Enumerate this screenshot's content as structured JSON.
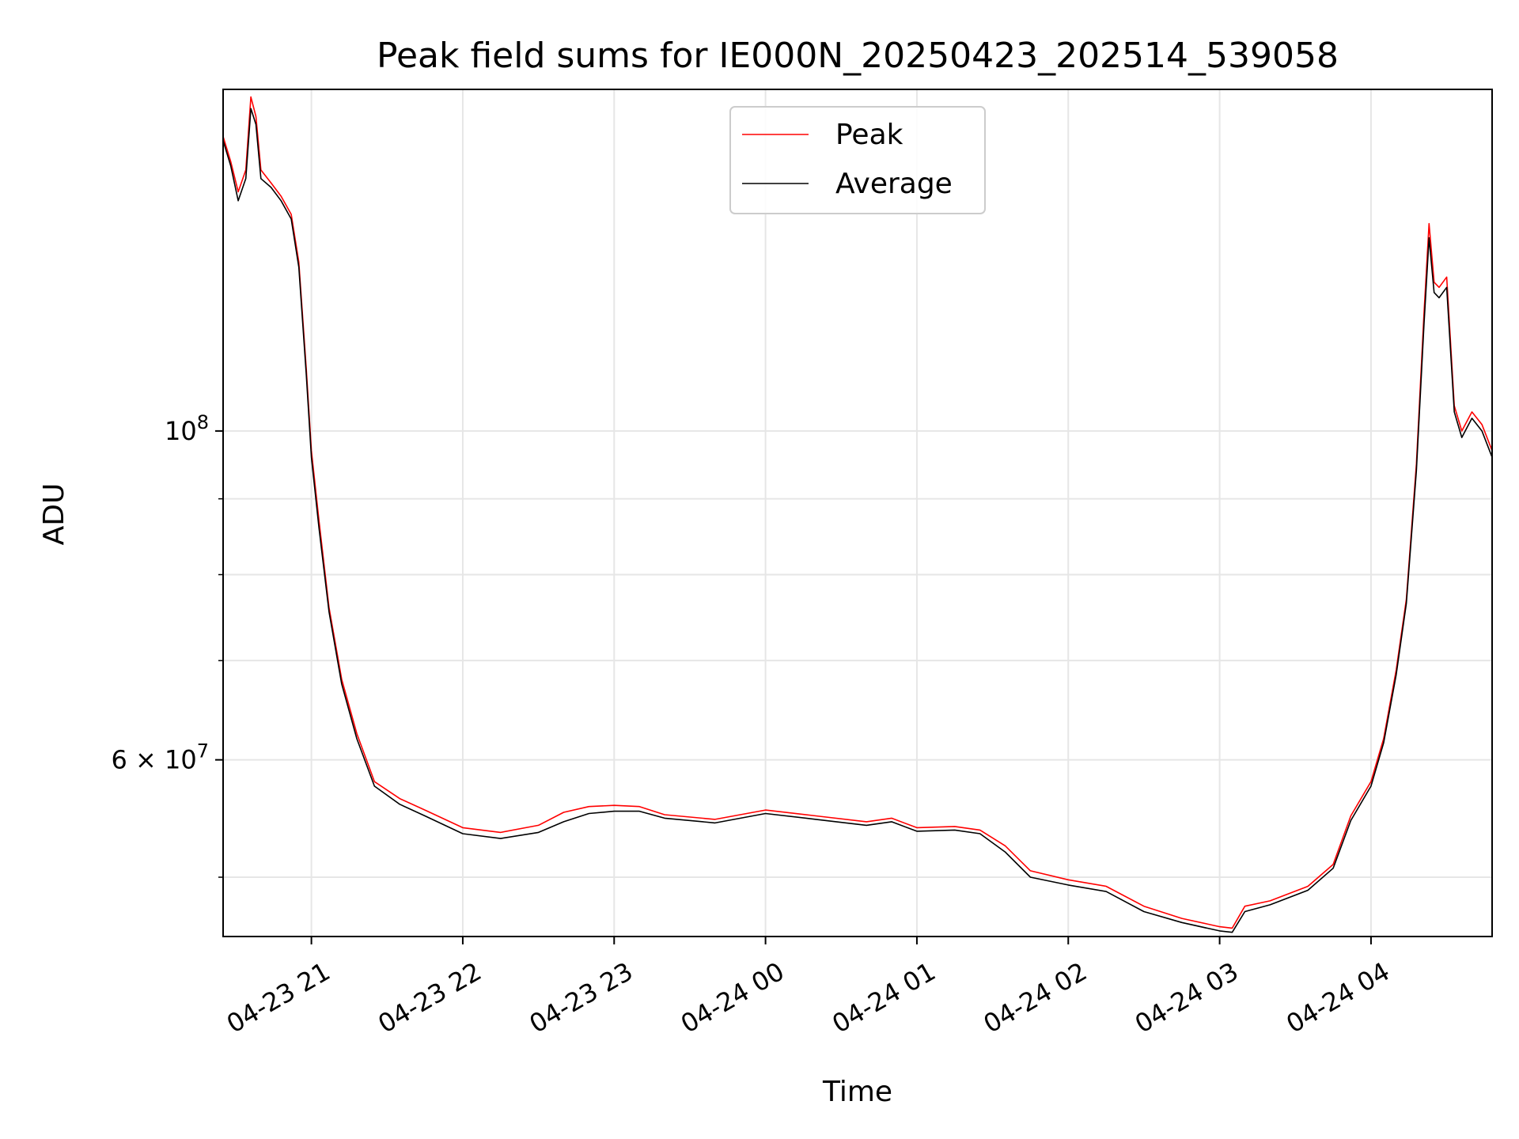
{
  "chart_data": {
    "type": "line",
    "title": "Peak field sums for IE000N_20250423_202514_539058",
    "xlabel": "Time",
    "ylabel": "ADU",
    "yscale": "log",
    "grid": true,
    "legend_position": "top-center",
    "xlim": [
      "2025-04-23 20:25",
      "2025-04-24 04:48"
    ],
    "ylim": [
      45600000,
      170000000
    ],
    "x_ticks": [
      {
        "value": "2025-04-23 21:00",
        "label": "04-23 21"
      },
      {
        "value": "2025-04-23 22:00",
        "label": "04-23 22"
      },
      {
        "value": "2025-04-23 23:00",
        "label": "04-23 23"
      },
      {
        "value": "2025-04-24 00:00",
        "label": "04-24 00"
      },
      {
        "value": "2025-04-24 01:00",
        "label": "04-24 01"
      },
      {
        "value": "2025-04-24 02:00",
        "label": "04-24 02"
      },
      {
        "value": "2025-04-24 03:00",
        "label": "04-24 03"
      },
      {
        "value": "2025-04-24 04:00",
        "label": "04-24 04"
      }
    ],
    "y_ticks": [
      {
        "value": 100000000,
        "base": "10",
        "exp": "8",
        "prefix": ""
      },
      {
        "value": 60000000,
        "base": "10",
        "exp": "7",
        "prefix": "6 × "
      }
    ],
    "y_minor_ticks": [
      50000000,
      70000000,
      80000000,
      90000000
    ],
    "series": [
      {
        "name": "Peak",
        "color": "#ff0000",
        "points": [
          [
            "2025-04-23 20:25",
            158000000
          ],
          [
            "2025-04-23 20:28",
            152000000
          ],
          [
            "2025-04-23 20:31",
            145000000
          ],
          [
            "2025-04-23 20:34",
            150000000
          ],
          [
            "2025-04-23 20:36",
            168000000
          ],
          [
            "2025-04-23 20:38",
            163000000
          ],
          [
            "2025-04-23 20:40",
            150000000
          ],
          [
            "2025-04-23 20:44",
            147000000
          ],
          [
            "2025-04-23 20:48",
            144000000
          ],
          [
            "2025-04-23 20:52",
            140000000
          ],
          [
            "2025-04-23 20:55",
            130000000
          ],
          [
            "2025-04-23 20:58",
            110000000
          ],
          [
            "2025-04-23 21:00",
            97000000
          ],
          [
            "2025-04-23 21:03",
            87000000
          ],
          [
            "2025-04-23 21:07",
            76000000
          ],
          [
            "2025-04-23 21:12",
            68000000
          ],
          [
            "2025-04-23 21:18",
            62500000
          ],
          [
            "2025-04-23 21:25",
            58000000
          ],
          [
            "2025-04-23 21:35",
            56500000
          ],
          [
            "2025-04-23 21:45",
            55500000
          ],
          [
            "2025-04-23 22:00",
            54000000
          ],
          [
            "2025-04-23 22:15",
            53600000
          ],
          [
            "2025-04-23 22:30",
            54200000
          ],
          [
            "2025-04-23 22:40",
            55300000
          ],
          [
            "2025-04-23 22:50",
            55800000
          ],
          [
            "2025-04-23 23:00",
            55900000
          ],
          [
            "2025-04-23 23:10",
            55800000
          ],
          [
            "2025-04-23 23:20",
            55100000
          ],
          [
            "2025-04-23 23:40",
            54700000
          ],
          [
            "2025-04-24 00:00",
            55500000
          ],
          [
            "2025-04-24 00:20",
            55000000
          ],
          [
            "2025-04-24 00:40",
            54500000
          ],
          [
            "2025-04-24 00:50",
            54800000
          ],
          [
            "2025-04-24 01:00",
            54000000
          ],
          [
            "2025-04-24 01:15",
            54100000
          ],
          [
            "2025-04-24 01:25",
            53800000
          ],
          [
            "2025-04-24 01:35",
            52500000
          ],
          [
            "2025-04-24 01:45",
            50500000
          ],
          [
            "2025-04-24 02:00",
            49800000
          ],
          [
            "2025-04-24 02:15",
            49300000
          ],
          [
            "2025-04-24 02:30",
            47800000
          ],
          [
            "2025-04-24 02:45",
            46900000
          ],
          [
            "2025-04-24 02:55",
            46500000
          ],
          [
            "2025-04-24 03:00",
            46300000
          ],
          [
            "2025-04-24 03:05",
            46200000
          ],
          [
            "2025-04-24 03:10",
            47800000
          ],
          [
            "2025-04-24 03:20",
            48200000
          ],
          [
            "2025-04-24 03:35",
            49300000
          ],
          [
            "2025-04-24 03:45",
            51000000
          ],
          [
            "2025-04-24 03:52",
            55000000
          ],
          [
            "2025-04-24 04:00",
            58000000
          ],
          [
            "2025-04-24 04:05",
            62000000
          ],
          [
            "2025-04-24 04:10",
            69000000
          ],
          [
            "2025-04-24 04:14",
            77000000
          ],
          [
            "2025-04-24 04:18",
            95000000
          ],
          [
            "2025-04-24 04:21",
            120000000
          ],
          [
            "2025-04-24 04:23",
            138000000
          ],
          [
            "2025-04-24 04:25",
            126000000
          ],
          [
            "2025-04-24 04:27",
            125000000
          ],
          [
            "2025-04-24 04:30",
            127000000
          ],
          [
            "2025-04-24 04:33",
            104000000
          ],
          [
            "2025-04-24 04:36",
            100000000
          ],
          [
            "2025-04-24 04:40",
            103000000
          ],
          [
            "2025-04-24 04:44",
            101000000
          ],
          [
            "2025-04-24 04:48",
            97000000
          ]
        ]
      },
      {
        "name": "Average",
        "color": "#000000",
        "points": [
          [
            "2025-04-23 20:25",
            157000000
          ],
          [
            "2025-04-23 20:28",
            151000000
          ],
          [
            "2025-04-23 20:31",
            143000000
          ],
          [
            "2025-04-23 20:34",
            148000000
          ],
          [
            "2025-04-23 20:36",
            165000000
          ],
          [
            "2025-04-23 20:38",
            161000000
          ],
          [
            "2025-04-23 20:40",
            148000000
          ],
          [
            "2025-04-23 20:44",
            146000000
          ],
          [
            "2025-04-23 20:48",
            143000000
          ],
          [
            "2025-04-23 20:52",
            139000000
          ],
          [
            "2025-04-23 20:55",
            129000000
          ],
          [
            "2025-04-23 20:58",
            109000000
          ],
          [
            "2025-04-23 21:00",
            96000000
          ],
          [
            "2025-04-23 21:03",
            86000000
          ],
          [
            "2025-04-23 21:07",
            75500000
          ],
          [
            "2025-04-23 21:12",
            67500000
          ],
          [
            "2025-04-23 21:18",
            62000000
          ],
          [
            "2025-04-23 21:25",
            57600000
          ],
          [
            "2025-04-23 21:35",
            56000000
          ],
          [
            "2025-04-23 21:45",
            55000000
          ],
          [
            "2025-04-23 22:00",
            53500000
          ],
          [
            "2025-04-23 22:15",
            53100000
          ],
          [
            "2025-04-23 22:30",
            53600000
          ],
          [
            "2025-04-23 22:40",
            54500000
          ],
          [
            "2025-04-23 22:50",
            55200000
          ],
          [
            "2025-04-23 23:00",
            55400000
          ],
          [
            "2025-04-23 23:10",
            55400000
          ],
          [
            "2025-04-23 23:20",
            54800000
          ],
          [
            "2025-04-23 23:40",
            54400000
          ],
          [
            "2025-04-24 00:00",
            55200000
          ],
          [
            "2025-04-24 00:20",
            54700000
          ],
          [
            "2025-04-24 00:40",
            54200000
          ],
          [
            "2025-04-24 00:50",
            54500000
          ],
          [
            "2025-04-24 01:00",
            53700000
          ],
          [
            "2025-04-24 01:15",
            53800000
          ],
          [
            "2025-04-24 01:25",
            53500000
          ],
          [
            "2025-04-24 01:35",
            52000000
          ],
          [
            "2025-04-24 01:45",
            50000000
          ],
          [
            "2025-04-24 02:00",
            49400000
          ],
          [
            "2025-04-24 02:15",
            48900000
          ],
          [
            "2025-04-24 02:30",
            47400000
          ],
          [
            "2025-04-24 02:45",
            46600000
          ],
          [
            "2025-04-24 02:55",
            46200000
          ],
          [
            "2025-04-24 03:00",
            46000000
          ],
          [
            "2025-04-24 03:05",
            45900000
          ],
          [
            "2025-04-24 03:10",
            47400000
          ],
          [
            "2025-04-24 03:20",
            47900000
          ],
          [
            "2025-04-24 03:35",
            49000000
          ],
          [
            "2025-04-24 03:45",
            50700000
          ],
          [
            "2025-04-24 03:52",
            54600000
          ],
          [
            "2025-04-24 04:00",
            57600000
          ],
          [
            "2025-04-24 04:05",
            61600000
          ],
          [
            "2025-04-24 04:10",
            68500000
          ],
          [
            "2025-04-24 04:14",
            76500000
          ],
          [
            "2025-04-24 04:18",
            94000000
          ],
          [
            "2025-04-24 04:21",
            118000000
          ],
          [
            "2025-04-24 04:23",
            135000000
          ],
          [
            "2025-04-24 04:25",
            124000000
          ],
          [
            "2025-04-24 04:27",
            123000000
          ],
          [
            "2025-04-24 04:30",
            125000000
          ],
          [
            "2025-04-24 04:33",
            103000000
          ],
          [
            "2025-04-24 04:36",
            99000000
          ],
          [
            "2025-04-24 04:40",
            102000000
          ],
          [
            "2025-04-24 04:44",
            100000000
          ],
          [
            "2025-04-24 04:48",
            96000000
          ]
        ]
      }
    ]
  }
}
